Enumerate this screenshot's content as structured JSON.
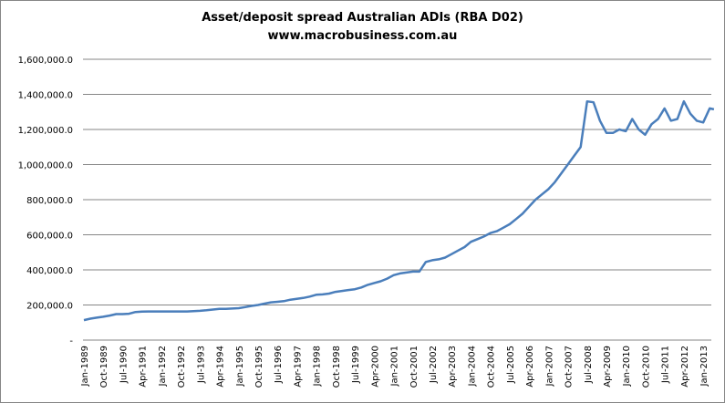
{
  "chart_data": {
    "type": "line",
    "title": "Asset/deposit spread Australian ADIs (RBA D02)",
    "subtitle": "www.macrobusiness.com.au",
    "xlabel": "",
    "ylabel": "",
    "ylim": [
      0,
      1600000
    ],
    "yticks": [
      0,
      200000,
      400000,
      600000,
      800000,
      1000000,
      1200000,
      1400000,
      1600000
    ],
    "ytick_labels": [
      "-",
      "200,000.0",
      "400,000.0",
      "600,000.0",
      "800,000.0",
      "1,000,000.0",
      "1,200,000.0",
      "1,400,000.0",
      "1,600,000.0"
    ],
    "xtick_labels": [
      "Jan-1989",
      "Oct-1989",
      "Jul-1990",
      "Apr-1991",
      "Jan-1992",
      "Oct-1992",
      "Jul-1993",
      "Apr-1994",
      "Jan-1995",
      "Oct-1995",
      "Jul-1996",
      "Apr-1997",
      "Jan-1998",
      "Oct-1998",
      "Jul-1999",
      "Apr-2000",
      "Jan-2001",
      "Oct-2001",
      "Jul-2002",
      "Apr-2003",
      "Jan-2004",
      "Oct-2004",
      "Jul-2005",
      "Apr-2006",
      "Jan-2007",
      "Oct-2007",
      "Jul-2008",
      "Apr-2009",
      "Jan-2010",
      "Oct-2010",
      "Jul-2011",
      "Apr-2012",
      "Jan-2013"
    ],
    "grid": true,
    "legend": "none",
    "line_color": "#4A7EBB",
    "x": [
      "1989-01",
      "1989-04",
      "1989-07",
      "1989-10",
      "1990-01",
      "1990-04",
      "1990-07",
      "1990-10",
      "1991-01",
      "1991-04",
      "1991-07",
      "1991-10",
      "1992-01",
      "1992-04",
      "1992-07",
      "1992-10",
      "1993-01",
      "1993-04",
      "1993-07",
      "1993-10",
      "1994-01",
      "1994-04",
      "1994-07",
      "1994-10",
      "1995-01",
      "1995-04",
      "1995-07",
      "1995-10",
      "1996-01",
      "1996-04",
      "1996-07",
      "1996-10",
      "1997-01",
      "1997-04",
      "1997-07",
      "1997-10",
      "1998-01",
      "1998-04",
      "1998-07",
      "1998-10",
      "1999-01",
      "1999-04",
      "1999-07",
      "1999-10",
      "2000-01",
      "2000-04",
      "2000-07",
      "2000-10",
      "2001-01",
      "2001-04",
      "2001-07",
      "2001-10",
      "2002-01",
      "2002-04",
      "2002-07",
      "2002-10",
      "2003-01",
      "2003-04",
      "2003-07",
      "2003-10",
      "2004-01",
      "2004-04",
      "2004-07",
      "2004-10",
      "2005-01",
      "2005-04",
      "2005-07",
      "2005-10",
      "2006-01",
      "2006-04",
      "2006-07",
      "2006-10",
      "2007-01",
      "2007-04",
      "2007-07",
      "2007-10",
      "2008-01",
      "2008-04",
      "2008-07",
      "2008-10",
      "2009-01",
      "2009-04",
      "2009-07",
      "2009-10",
      "2010-01",
      "2010-04",
      "2010-07",
      "2010-10",
      "2011-01",
      "2011-04",
      "2011-07",
      "2011-10",
      "2012-01",
      "2012-04",
      "2012-07",
      "2012-10",
      "2013-01",
      "2013-04",
      "2013-06"
    ],
    "values": [
      114000,
      122000,
      128000,
      133000,
      140000,
      148000,
      148000,
      150000,
      160000,
      162000,
      163000,
      163000,
      163000,
      163000,
      163000,
      163000,
      163000,
      165000,
      167000,
      170000,
      174000,
      178000,
      178000,
      180000,
      182000,
      188000,
      195000,
      200000,
      208000,
      215000,
      218000,
      222000,
      230000,
      235000,
      240000,
      248000,
      258000,
      260000,
      265000,
      275000,
      280000,
      285000,
      290000,
      300000,
      315000,
      325000,
      335000,
      350000,
      370000,
      380000,
      385000,
      390000,
      390000,
      445000,
      455000,
      460000,
      470000,
      490000,
      510000,
      530000,
      560000,
      575000,
      590000,
      610000,
      620000,
      640000,
      660000,
      690000,
      720000,
      760000,
      800000,
      830000,
      860000,
      900000,
      950000,
      1000000,
      1050000,
      1100000,
      1360000,
      1355000,
      1250000,
      1180000,
      1180000,
      1200000,
      1190000,
      1260000,
      1200000,
      1170000,
      1230000,
      1260000,
      1320000,
      1250000,
      1260000,
      1360000,
      1290000,
      1250000,
      1240000,
      1320000,
      1315000
    ]
  }
}
